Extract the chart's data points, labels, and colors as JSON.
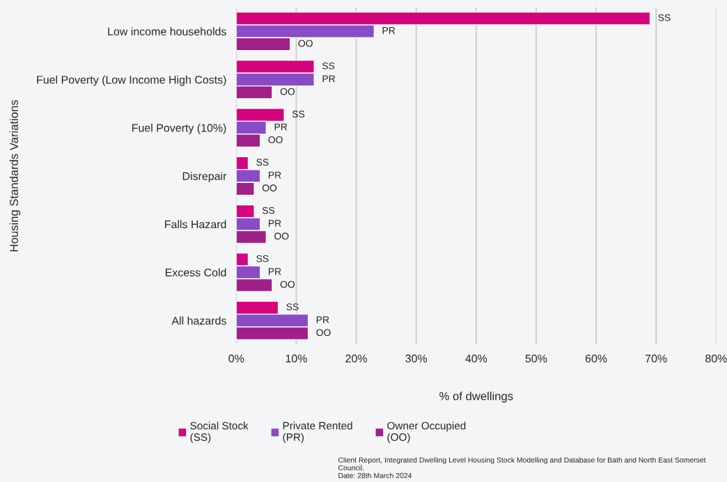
{
  "chart_data": {
    "type": "bar",
    "orientation": "horizontal",
    "categories": [
      "Low income households",
      "Fuel Poverty (Low Income High Costs)",
      "Fuel Poverty (10%)",
      "Disrepair",
      "Falls Hazard",
      "Excess Cold",
      "All hazards"
    ],
    "series": [
      {
        "name": "Social Stock\n(SS)",
        "color": "#d4047f",
        "values": [
          69,
          13,
          8,
          2,
          3,
          2,
          7
        ],
        "value_labels": [
          "SS",
          "SS",
          "SS",
          "SS",
          "SS",
          "SS",
          "SS"
        ]
      },
      {
        "name": "Private Rented\n(PR)",
        "color": "#8a4cc6",
        "values": [
          23,
          13,
          5,
          4,
          4,
          4,
          12
        ],
        "value_labels": [
          "PR",
          "PR",
          "PR",
          "PR",
          "PR",
          "PR",
          "PR"
        ]
      },
      {
        "name": "Owner Occupied\n(OO)",
        "color": "#a0208a",
        "values": [
          9,
          6,
          4,
          3,
          5,
          6,
          12
        ],
        "value_labels": [
          "OO",
          "OO",
          "OO",
          "OO",
          "OO",
          "OO",
          "OO"
        ]
      }
    ],
    "xlim": [
      0,
      80
    ],
    "xticks": [
      {
        "value": 0,
        "label": "0%"
      },
      {
        "value": 10,
        "label": "10%"
      },
      {
        "value": 20,
        "label": "20%"
      },
      {
        "value": 30,
        "label": "30%"
      },
      {
        "value": 40,
        "label": "40%"
      },
      {
        "value": 50,
        "label": "50%"
      },
      {
        "value": 60,
        "label": "60%"
      },
      {
        "value": 70,
        "label": "70%"
      },
      {
        "value": 80,
        "label": "80%"
      }
    ],
    "xlabel": "% of dwellings",
    "ylabel": "Housing Standards Variations",
    "grid": "x",
    "legend": "bottom",
    "annotations": [
      "Client Report, Integrated Dwelling Level Housing Stock Modelling and Database for Bath and North East Somerset Council.\nDate: 28th March 2024"
    ]
  }
}
